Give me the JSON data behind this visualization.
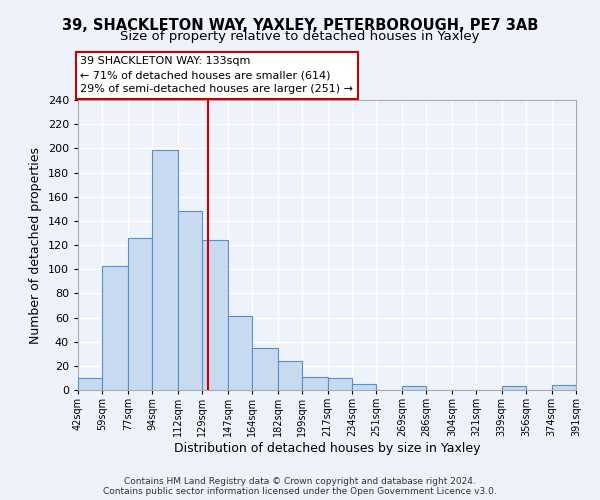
{
  "title": "39, SHACKLETON WAY, YAXLEY, PETERBOROUGH, PE7 3AB",
  "subtitle": "Size of property relative to detached houses in Yaxley",
  "xlabel": "Distribution of detached houses by size in Yaxley",
  "ylabel": "Number of detached properties",
  "bar_edges": [
    42,
    59,
    77,
    94,
    112,
    129,
    147,
    164,
    182,
    199,
    217,
    234,
    251,
    269,
    286,
    304,
    321,
    339,
    356,
    374,
    391
  ],
  "bar_heights": [
    10,
    103,
    126,
    199,
    148,
    124,
    61,
    35,
    24,
    11,
    10,
    5,
    0,
    3,
    0,
    0,
    0,
    3,
    0,
    4
  ],
  "bar_color": "#c8daf0",
  "bar_edge_color": "#5590cc",
  "property_line_x": 133,
  "property_line_color": "#cc0000",
  "ylim": [
    0,
    240
  ],
  "yticks": [
    0,
    20,
    40,
    60,
    80,
    100,
    120,
    140,
    160,
    180,
    200,
    220,
    240
  ],
  "annotation_title": "39 SHACKLETON WAY: 133sqm",
  "annotation_line1": "← 71% of detached houses are smaller (614)",
  "annotation_line2": "29% of semi-detached houses are larger (251) →",
  "annotation_box_color": "#ffffff",
  "annotation_box_edge": "#cc0000",
  "footer_line1": "Contains HM Land Registry data © Crown copyright and database right 2024.",
  "footer_line2": "Contains public sector information licensed under the Open Government Licence v3.0.",
  "background_color": "#eef2fa",
  "grid_color": "#ffffff",
  "title_fontsize": 10.5,
  "subtitle_fontsize": 9.5
}
